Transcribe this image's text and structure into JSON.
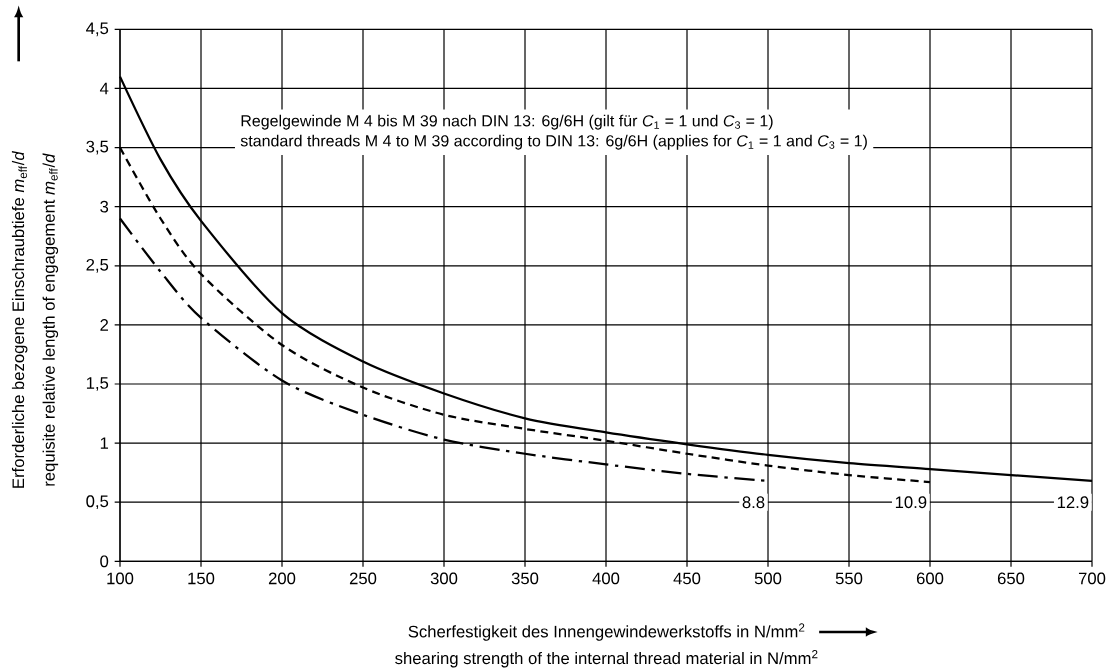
{
  "chart_data": {
    "type": "line",
    "xlabel": "Scherfestigkeit des Innengewindewerkstoffs in N/mm$^{2}$",
    "ylabel": "Erforderliche bezogene Einschraubtiefe *m*$_{eff}$/*d*",
    "annotations": [
      "Regelgewinde M 4 bis M 39 nach DIN 13: 6g/6H (gilt für *C*$_{1}$ = 1 und *C*$_{3}$ = 1)",
      "standard threads M 4 to M 39 according to DIN 13: 6g/6H (applies for *C*$_{1}$ = 1 and *C*$_{3}$ = 1)",
      "shearing strength of the internal thread material in N/mm$^{2}$",
      "requisite relative length of engagement *m*$_{eff}$/*d*"
    ],
    "series": [
      {
        "name": "8.8",
        "color": "#000000",
        "line_style": "dashdot",
        "x": [
          100,
          125,
          150,
          200,
          250,
          300,
          350,
          400,
          450,
          500
        ],
        "values": [
          2.9,
          2.45,
          2.06,
          1.53,
          1.24,
          1.03,
          0.91,
          0.82,
          0.74,
          0.68
        ]
      },
      {
        "name": "10.9",
        "color": "#000000",
        "line_style": "dashed",
        "x": [
          100,
          125,
          150,
          200,
          250,
          300,
          350,
          400,
          450,
          500,
          550,
          600
        ],
        "values": [
          3.5,
          2.9,
          2.43,
          1.83,
          1.47,
          1.24,
          1.12,
          1.02,
          0.91,
          0.81,
          0.73,
          0.67
        ]
      },
      {
        "name": "12.9",
        "color": "#000000",
        "line_style": "solid",
        "x": [
          100,
          125,
          150,
          200,
          250,
          300,
          350,
          400,
          450,
          500,
          550,
          600,
          650,
          700
        ],
        "values": [
          4.1,
          3.4,
          2.88,
          2.1,
          1.69,
          1.42,
          1.21,
          1.09,
          0.99,
          0.9,
          0.83,
          0.78,
          0.73,
          0.68
        ]
      }
    ],
    "xlim": [
      100,
      700
    ],
    "ylim": [
      0,
      4.5
    ],
    "xticks": [
      100,
      150,
      200,
      250,
      300,
      350,
      400,
      450,
      500,
      550,
      600,
      650,
      700
    ],
    "yticks": [
      0,
      {
        "value": 0.5,
        "label": "0,5"
      },
      1,
      {
        "value": 1.5,
        "label": "1,5"
      },
      2,
      {
        "value": 2.5,
        "label": "2,5"
      },
      3,
      {
        "value": 3.5,
        "label": "3,5"
      },
      4,
      {
        "value": 4.5,
        "label": "4,5"
      }
    ],
    "grid": true
  }
}
